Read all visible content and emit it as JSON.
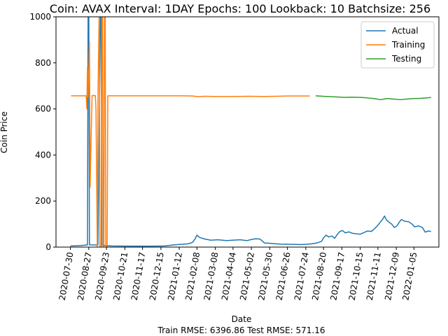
{
  "chart_data": {
    "type": "line",
    "title": "Coin: AVAX Interval: 1DAY Epochs: 100 Lookback: 10 Batchsize: 256",
    "xlabel": "Date",
    "ylabel": "Coin Price",
    "footer": "Train RMSE: 6396.86 Test RMSE: 571.16",
    "ylim": [
      0,
      1000
    ],
    "xlim": [
      "2020-07-08",
      "2022-02-12"
    ],
    "grid": false,
    "legend_position": "top-right",
    "x_ticks": [
      "2020-07-30",
      "2020-08-27",
      "2020-09-23",
      "2020-10-21",
      "2020-11-17",
      "2020-12-15",
      "2021-01-12",
      "2021-02-08",
      "2021-03-08",
      "2021-04-04",
      "2021-05-02",
      "2021-05-30",
      "2021-06-26",
      "2021-07-24",
      "2021-08-20",
      "2021-09-17",
      "2021-10-15",
      "2021-11-11",
      "2021-12-09",
      "2022-01-05"
    ],
    "y_ticks": [
      0,
      200,
      400,
      600,
      800,
      1000
    ],
    "series": [
      {
        "name": "Actual",
        "color": "#1f77b4",
        "points": [
          [
            "2020-07-30",
            5
          ],
          [
            "2020-08-10",
            6
          ],
          [
            "2020-08-20",
            8
          ],
          [
            "2020-08-24",
            10
          ],
          [
            "2020-08-25",
            9
          ],
          [
            "2020-08-26",
            1050
          ],
          [
            "2020-08-27",
            1050
          ],
          [
            "2020-08-28",
            10
          ],
          [
            "2020-09-10",
            9
          ],
          [
            "2020-09-14",
            1050
          ],
          [
            "2020-09-15",
            1050
          ],
          [
            "2020-09-16",
            8
          ],
          [
            "2020-10-01",
            5
          ],
          [
            "2020-11-01",
            4
          ],
          [
            "2020-12-01",
            4
          ],
          [
            "2020-12-20",
            5
          ],
          [
            "2021-01-05",
            10
          ],
          [
            "2021-01-25",
            14
          ],
          [
            "2021-02-01",
            20
          ],
          [
            "2021-02-05",
            35
          ],
          [
            "2021-02-08",
            52
          ],
          [
            "2021-02-12",
            42
          ],
          [
            "2021-02-20",
            35
          ],
          [
            "2021-03-01",
            30
          ],
          [
            "2021-03-12",
            32
          ],
          [
            "2021-03-25",
            28
          ],
          [
            "2021-04-04",
            30
          ],
          [
            "2021-04-15",
            32
          ],
          [
            "2021-04-25",
            28
          ],
          [
            "2021-05-02",
            33
          ],
          [
            "2021-05-08",
            36
          ],
          [
            "2021-05-15",
            35
          ],
          [
            "2021-05-22",
            18
          ],
          [
            "2021-06-01",
            16
          ],
          [
            "2021-06-15",
            13
          ],
          [
            "2021-07-01",
            12
          ],
          [
            "2021-07-15",
            11
          ],
          [
            "2021-07-25",
            12
          ],
          [
            "2021-08-01",
            14
          ],
          [
            "2021-08-10",
            18
          ],
          [
            "2021-08-17",
            25
          ],
          [
            "2021-08-20",
            40
          ],
          [
            "2021-08-24",
            52
          ],
          [
            "2021-08-28",
            44
          ],
          [
            "2021-09-02",
            48
          ],
          [
            "2021-09-06",
            38
          ],
          [
            "2021-09-10",
            55
          ],
          [
            "2021-09-14",
            68
          ],
          [
            "2021-09-18",
            72
          ],
          [
            "2021-09-22",
            62
          ],
          [
            "2021-09-28",
            66
          ],
          [
            "2021-10-03",
            60
          ],
          [
            "2021-10-08",
            58
          ],
          [
            "2021-10-15",
            56
          ],
          [
            "2021-10-20",
            62
          ],
          [
            "2021-10-26",
            70
          ],
          [
            "2021-11-01",
            68
          ],
          [
            "2021-11-06",
            80
          ],
          [
            "2021-11-11",
            95
          ],
          [
            "2021-11-15",
            110
          ],
          [
            "2021-11-18",
            120
          ],
          [
            "2021-11-21",
            135
          ],
          [
            "2021-11-24",
            118
          ],
          [
            "2021-11-28",
            108
          ],
          [
            "2021-12-02",
            100
          ],
          [
            "2021-12-06",
            85
          ],
          [
            "2021-12-10",
            92
          ],
          [
            "2021-12-14",
            110
          ],
          [
            "2021-12-17",
            120
          ],
          [
            "2021-12-22",
            112
          ],
          [
            "2021-12-28",
            110
          ],
          [
            "2022-01-02",
            100
          ],
          [
            "2022-01-06",
            88
          ],
          [
            "2022-01-12",
            92
          ],
          [
            "2022-01-18",
            85
          ],
          [
            "2022-01-22",
            65
          ],
          [
            "2022-01-27",
            70
          ],
          [
            "2022-01-31",
            68
          ]
        ]
      },
      {
        "name": "Training",
        "color": "#ff7f0e",
        "points": [
          [
            "2020-07-31",
            657
          ],
          [
            "2020-08-23",
            657
          ],
          [
            "2020-08-24",
            600
          ],
          [
            "2020-08-25",
            780
          ],
          [
            "2020-08-26",
            650
          ],
          [
            "2020-08-28",
            890
          ],
          [
            "2020-08-29",
            260
          ],
          [
            "2020-08-30",
            400
          ],
          [
            "2020-09-01",
            658
          ],
          [
            "2020-09-06",
            658
          ],
          [
            "2020-09-07",
            600
          ],
          [
            "2020-09-09",
            0
          ],
          [
            "2020-09-10",
            640
          ],
          [
            "2020-09-11",
            850
          ],
          [
            "2020-09-12",
            1050
          ],
          [
            "2020-09-13",
            0
          ],
          [
            "2020-09-15",
            0
          ],
          [
            "2020-09-16",
            1050
          ],
          [
            "2020-09-17",
            1050
          ],
          [
            "2020-09-18",
            0
          ],
          [
            "2020-09-19",
            0
          ],
          [
            "2020-09-20",
            1050
          ],
          [
            "2020-09-21",
            1050
          ],
          [
            "2020-09-22",
            0
          ],
          [
            "2020-09-24",
            0
          ],
          [
            "2020-09-25",
            657
          ],
          [
            "2020-10-15",
            657
          ],
          [
            "2020-12-01",
            657
          ],
          [
            "2021-01-15",
            657
          ],
          [
            "2021-02-01",
            656
          ],
          [
            "2021-02-10",
            653
          ],
          [
            "2021-02-20",
            655
          ],
          [
            "2021-03-08",
            654
          ],
          [
            "2021-04-01",
            654
          ],
          [
            "2021-05-01",
            655
          ],
          [
            "2021-05-20",
            654
          ],
          [
            "2021-06-10",
            655
          ],
          [
            "2021-06-26",
            656
          ],
          [
            "2021-07-20",
            656
          ],
          [
            "2021-07-30",
            656
          ]
        ]
      },
      {
        "name": "Testing",
        "color": "#2ca02c",
        "points": [
          [
            "2021-08-08",
            657
          ],
          [
            "2021-08-25",
            654
          ],
          [
            "2021-09-10",
            652
          ],
          [
            "2021-09-20",
            650
          ],
          [
            "2021-10-01",
            651
          ],
          [
            "2021-10-15",
            650
          ],
          [
            "2021-10-25",
            648
          ],
          [
            "2021-11-05",
            645
          ],
          [
            "2021-11-15",
            640
          ],
          [
            "2021-11-25",
            645
          ],
          [
            "2021-12-05",
            643
          ],
          [
            "2021-12-15",
            640
          ],
          [
            "2021-12-25",
            643
          ],
          [
            "2022-01-05",
            645
          ],
          [
            "2022-01-15",
            646
          ],
          [
            "2022-01-25",
            648
          ],
          [
            "2022-01-31",
            650
          ]
        ]
      }
    ]
  }
}
